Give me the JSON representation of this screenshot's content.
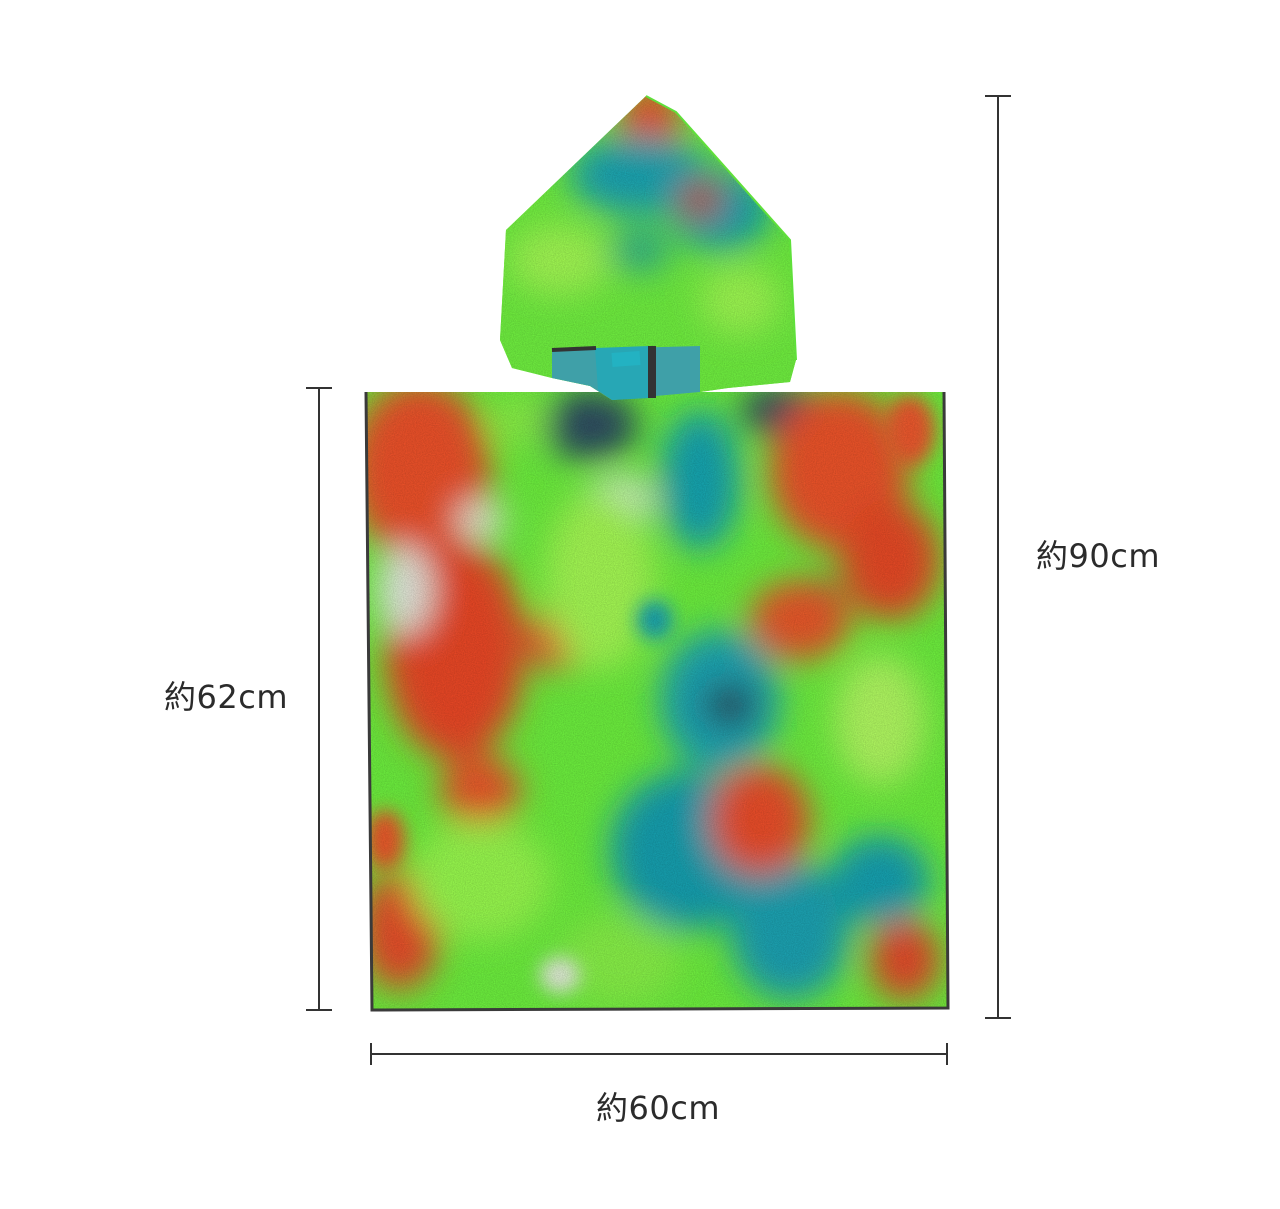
{
  "product": {
    "name_icon": "hooded-poncho-towel-tie-dye",
    "colors": {
      "green": "#5cf23a",
      "lime": "#a6ff52",
      "orange": "#f2522c",
      "red": "#e23a24",
      "teal": "#19a8b4",
      "navy": "#2f4f64",
      "pale": "#e9efe4",
      "hem": "#3a3a3a"
    }
  },
  "dimensions": {
    "width_label": "約60cm",
    "body_height_label": "約62cm",
    "total_length_label": "約90cm"
  }
}
